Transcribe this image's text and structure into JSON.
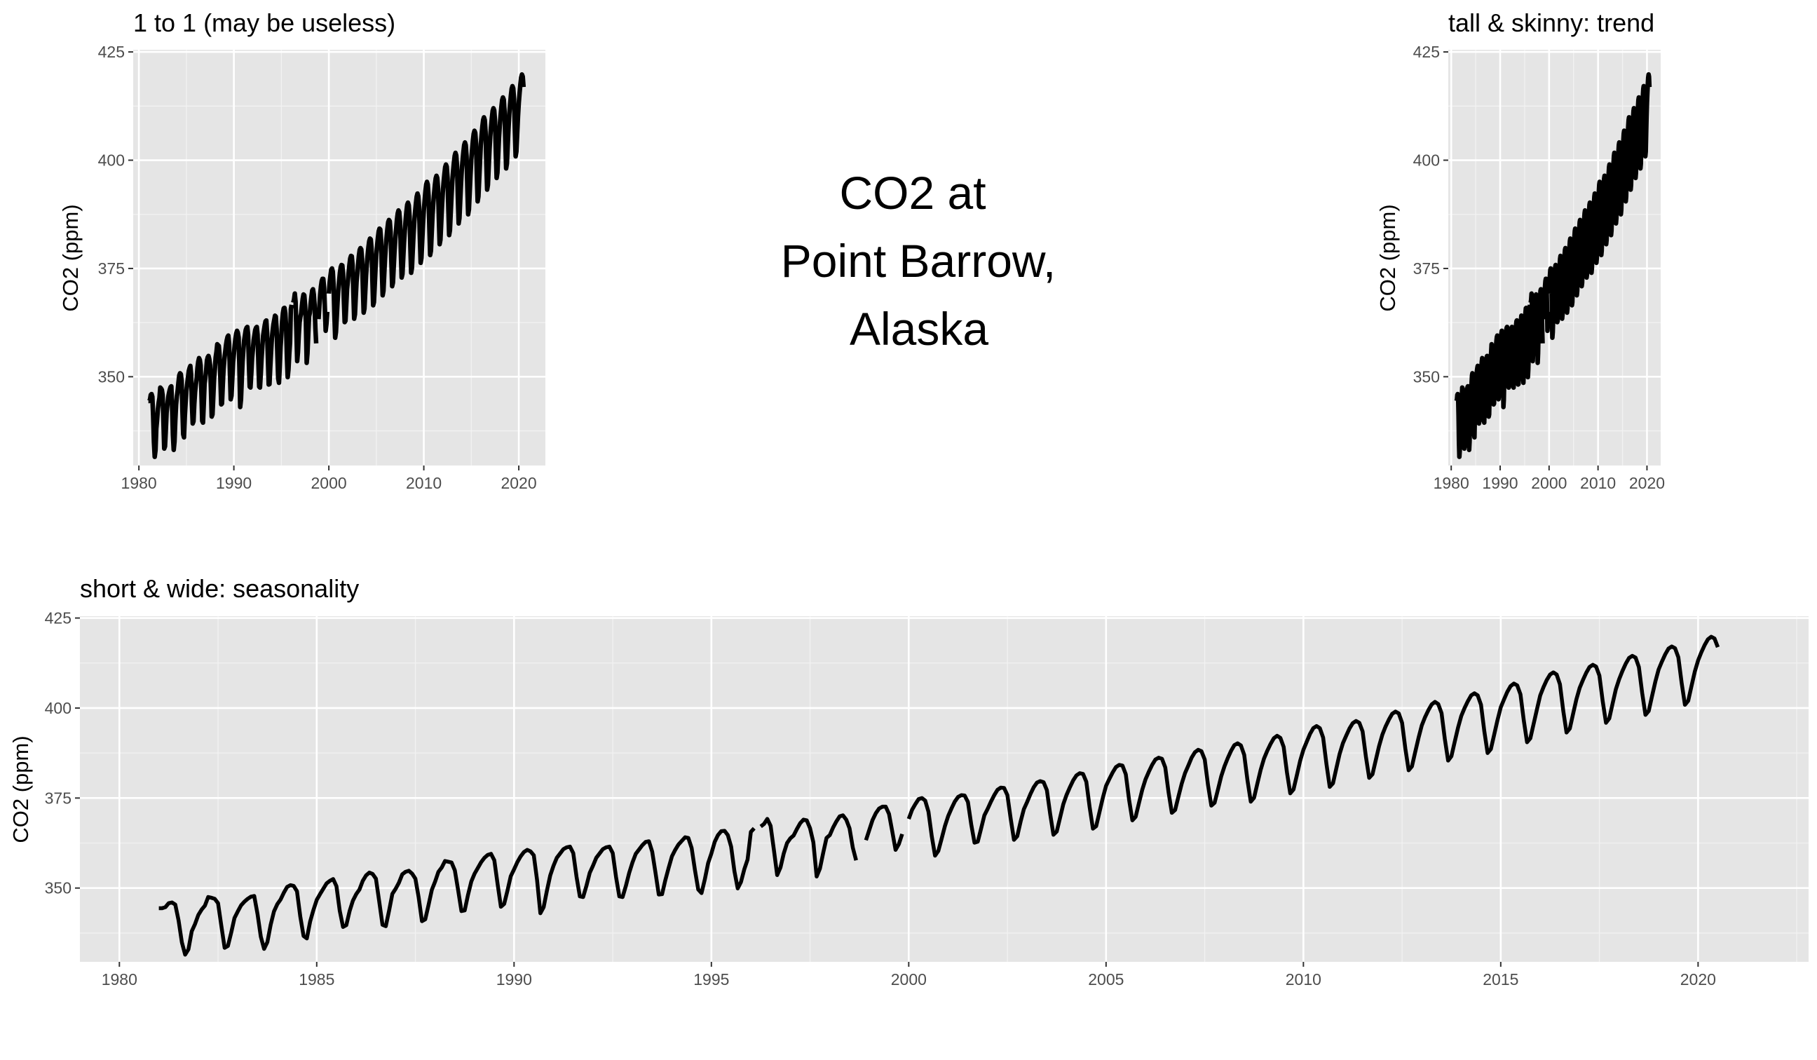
{
  "center_title": {
    "lines": [
      "CO2 at",
      "Point Barrow,",
      "Alaska"
    ]
  },
  "chart_data": [
    {
      "id": "one_to_one",
      "type": "line",
      "title": "1 to 1 (may be useless)",
      "xlabel": "",
      "ylabel": "CO2 (ppm)",
      "xlim": [
        1979.4,
        2022.8
      ],
      "ylim": [
        329.5,
        425.5
      ],
      "xticks": [
        1980,
        1990,
        2000,
        2010,
        2020
      ],
      "yticks": [
        350,
        375,
        400,
        425
      ],
      "grid": true,
      "line_color": "#000000",
      "panel_background": "#e5e5e5",
      "series": [
        {
          "data_ref": "co2_monthly"
        }
      ]
    },
    {
      "id": "tall_skinny",
      "type": "line",
      "title": "tall & skinny:  trend",
      "xlabel": "",
      "ylabel": "CO2 (ppm)",
      "xlim": [
        1979.4,
        2022.8
      ],
      "ylim": [
        329.5,
        425.5
      ],
      "xticks": [
        1980,
        1990,
        2000,
        2010,
        2020
      ],
      "yticks": [
        350,
        375,
        400,
        425
      ],
      "grid": true,
      "line_color": "#000000",
      "panel_background": "#e5e5e5",
      "series": [
        {
          "data_ref": "co2_monthly"
        }
      ]
    },
    {
      "id": "short_wide",
      "type": "line",
      "title": "short & wide: seasonality",
      "xlabel": "",
      "ylabel": "CO2 (ppm)",
      "xlim": [
        1979.0,
        2022.8
      ],
      "ylim": [
        329.5,
        425.5
      ],
      "xticks": [
        1980,
        1985,
        1990,
        1995,
        2000,
        2005,
        2010,
        2015,
        2020
      ],
      "yticks": [
        350,
        375,
        400,
        425
      ],
      "grid": true,
      "line_color": "#000000",
      "panel_background": "#e5e5e5",
      "series": [
        {
          "data_ref": "co2_monthly"
        }
      ]
    }
  ],
  "co2_monthly": {
    "x_start": 1981.0,
    "x_step_years": 0.08333,
    "values_by_year": {
      "1981": [
        344.4,
        344.4,
        344.7,
        345.8,
        346.0,
        345.4,
        341.0,
        334.9,
        331.5,
        333.0,
        338.0,
        340.0
      ],
      "1982": [
        342.5,
        344.0,
        345.1,
        347.5,
        347.3,
        347.0,
        345.8,
        339.5,
        333.4,
        333.9,
        337.6,
        341.7
      ],
      "1983": [
        343.5,
        345.2,
        346.2,
        347.0,
        347.6,
        347.8,
        342.8,
        336.5,
        333.1,
        335.0,
        339.8,
        343.5
      ],
      "1984": [
        345.5,
        346.8,
        348.7,
        350.3,
        350.8,
        350.6,
        349.1,
        342.1,
        336.7,
        336.0,
        340.7,
        343.9
      ],
      "1985": [
        346.7,
        348.3,
        349.8,
        351.3,
        352.0,
        352.5,
        350.5,
        343.7,
        339.2,
        339.7,
        343.6,
        346.5
      ],
      "1986": [
        348.3,
        349.6,
        352.0,
        353.5,
        354.3,
        353.9,
        352.6,
        346.3,
        339.8,
        339.4,
        343.7,
        348.4
      ],
      "1987": [
        349.8,
        351.5,
        353.8,
        354.5,
        354.8,
        354.0,
        352.6,
        347.4,
        340.8,
        341.3,
        345.3,
        349.5
      ],
      "1988": [
        351.8,
        354.5,
        355.7,
        357.5,
        357.3,
        357.1,
        354.9,
        349.4,
        343.6,
        343.8,
        348.1,
        351.8
      ],
      "1989": [
        354.0,
        355.6,
        357.2,
        358.4,
        359.2,
        359.5,
        357.7,
        351.1,
        344.8,
        345.6,
        349.3,
        353.3
      ],
      "1990": [
        355.2,
        357.2,
        358.8,
        360.0,
        360.6,
        360.2,
        359.1,
        352.2,
        343.0,
        344.7,
        349.3,
        353.5
      ],
      "1991": [
        356.2,
        358.4,
        359.6,
        360.8,
        361.3,
        361.5,
        359.7,
        353.1,
        347.7,
        347.5,
        350.6,
        354.2
      ],
      "1992": [
        356.2,
        358.4,
        359.6,
        360.8,
        361.3,
        361.5,
        359.7,
        353.1,
        347.7,
        347.5,
        350.6,
        354.2
      ],
      "1993": [
        357.1,
        359.5,
        360.7,
        361.9,
        362.8,
        363.0,
        360.1,
        354.3,
        348.2,
        348.3,
        352.2,
        355.6
      ],
      "1994": [
        358.8,
        360.6,
        362.1,
        363.1,
        364.1,
        363.9,
        361.1,
        355.0,
        349.6,
        348.6,
        352.4,
        356.9
      ],
      "1995": [
        359.6,
        362.8,
        364.7,
        365.8,
        365.9,
        364.7,
        361.5,
        354.7,
        349.9,
        351.7,
        355.2,
        357.9
      ],
      "1996": [
        365.6,
        366.6,
        null,
        367.1,
        367.8,
        369.2,
        367.3,
        360.6,
        353.6,
        355.7,
        359.6,
        362.5
      ],
      "1997": [
        363.8,
        364.6,
        366.4,
        368.0,
        369.0,
        368.8,
        366.6,
        362.7,
        353.2,
        355.4,
        359.8,
        363.9
      ],
      "1998": [
        364.7,
        366.8,
        368.5,
        369.9,
        370.2,
        369.0,
        366.6,
        361.2,
        357.7,
        null,
        null,
        363.3
      ],
      "1999": [
        366.1,
        368.9,
        370.8,
        372.1,
        372.6,
        372.6,
        370.6,
        365.7,
        360.6,
        362.2,
        365.0,
        null
      ],
      "2000": [
        369.2,
        371.7,
        373.3,
        374.7,
        375.0,
        374.3,
        371.2,
        364.4,
        359.0,
        360.3,
        363.7,
        367.2
      ],
      "2001": [
        370.0,
        372.1,
        374.0,
        375.3,
        375.8,
        375.7,
        373.9,
        367.7,
        362.6,
        362.9,
        366.5,
        370.2
      ],
      "2002": [
        372.0,
        374.0,
        375.8,
        377.3,
        377.9,
        377.8,
        375.8,
        369.3,
        363.4,
        364.4,
        368.4,
        371.9
      ],
      "2003": [
        373.9,
        376.1,
        378.0,
        379.3,
        379.7,
        379.4,
        377.2,
        370.6,
        364.8,
        365.7,
        369.5,
        373.3
      ],
      "2004": [
        375.9,
        378.0,
        379.9,
        381.3,
        381.9,
        381.7,
        379.5,
        372.5,
        366.5,
        367.2,
        371.1,
        375.0
      ],
      "2005": [
        378.4,
        380.3,
        382.1,
        383.6,
        384.2,
        384.0,
        381.6,
        374.5,
        368.8,
        369.8,
        373.6,
        377.3
      ],
      "2006": [
        380.2,
        382.3,
        384.2,
        385.7,
        386.2,
        385.9,
        383.5,
        376.6,
        370.9,
        371.7,
        375.4,
        379.0
      ],
      "2007": [
        381.9,
        384.0,
        386.2,
        387.7,
        388.4,
        388.0,
        385.7,
        378.6,
        372.9,
        373.7,
        377.3,
        381.0
      ],
      "2008": [
        383.8,
        386.1,
        388.1,
        389.7,
        390.2,
        389.6,
        387.0,
        379.9,
        374.0,
        375.1,
        379.0,
        382.8
      ],
      "2009": [
        385.9,
        388.1,
        390.0,
        391.6,
        392.3,
        391.7,
        389.2,
        382.1,
        376.3,
        377.4,
        381.3,
        385.3
      ],
      "2010": [
        388.4,
        390.6,
        392.8,
        394.4,
        395.0,
        394.4,
        391.8,
        384.5,
        378.1,
        379.1,
        383.2,
        387.2
      ],
      "2011": [
        390.2,
        392.3,
        394.3,
        395.8,
        396.4,
        395.9,
        393.5,
        386.5,
        380.6,
        381.6,
        385.5,
        389.4
      ],
      "2012": [
        392.6,
        394.9,
        396.8,
        398.4,
        399.0,
        398.5,
        395.9,
        388.7,
        382.7,
        383.8,
        387.8,
        391.7
      ],
      "2013": [
        395.2,
        397.5,
        399.4,
        401.0,
        401.7,
        401.1,
        398.6,
        391.4,
        385.4,
        386.6,
        390.6,
        394.5
      ],
      "2014": [
        397.8,
        400.0,
        401.9,
        403.5,
        404.1,
        403.5,
        400.9,
        393.6,
        387.5,
        388.6,
        392.6,
        396.6
      ],
      "2015": [
        400.2,
        402.4,
        404.5,
        406.1,
        406.8,
        406.3,
        403.8,
        396.6,
        390.5,
        391.6,
        395.6,
        399.6
      ],
      "2016": [
        403.5,
        405.8,
        407.8,
        409.3,
        409.9,
        409.3,
        406.6,
        399.3,
        393.2,
        394.3,
        398.4,
        402.4
      ],
      "2017": [
        405.6,
        407.8,
        409.8,
        411.4,
        412.0,
        411.5,
        409.0,
        401.9,
        395.9,
        397.1,
        401.2,
        405.2
      ],
      "2018": [
        408.0,
        410.3,
        412.3,
        413.9,
        414.5,
        414.0,
        411.4,
        404.2,
        398.1,
        399.2,
        403.3,
        407.3
      ],
      "2019": [
        410.7,
        412.9,
        414.9,
        416.5,
        417.1,
        416.6,
        414.1,
        407.0,
        400.9,
        402.0,
        406.1,
        410.1
      ],
      "2020": [
        413.2,
        415.5,
        417.5,
        419.1,
        419.8,
        419.3,
        416.9,
        null,
        null,
        null,
        null,
        null
      ]
    }
  }
}
